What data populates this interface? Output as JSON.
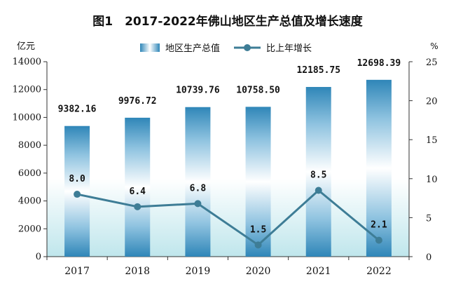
{
  "chart_data": {
    "type": "bar+line",
    "title": "图1　2017-2022年佛山地区生产总值及增长速度",
    "categories": [
      "2017",
      "2018",
      "2019",
      "2020",
      "2021",
      "2022"
    ],
    "series": [
      {
        "name": "地区生产总值",
        "type": "bar",
        "axis": "left",
        "values": [
          9382.16,
          9976.72,
          10739.76,
          10758.5,
          12185.75,
          12698.39
        ],
        "labels": [
          "9382.16",
          "9976.72",
          "10739.76",
          "10758.50",
          "12185.75",
          "12698.39"
        ]
      },
      {
        "name": "比上年增长",
        "type": "line",
        "axis": "right",
        "values": [
          8.0,
          6.4,
          6.8,
          1.5,
          8.5,
          2.1
        ],
        "labels": [
          "8.0",
          "6.4",
          "6.8",
          "1.5",
          "8.5",
          "2.1"
        ]
      }
    ],
    "left_axis": {
      "unit": "亿元",
      "range": [
        0,
        14000
      ],
      "ticks": [
        0,
        2000,
        4000,
        6000,
        8000,
        10000,
        12000,
        14000
      ]
    },
    "right_axis": {
      "unit": "%",
      "range": [
        0,
        25
      ],
      "ticks": [
        0,
        5,
        10,
        15,
        20,
        25
      ]
    },
    "legend_position": "top-center",
    "grid": false
  },
  "colors": {
    "bar_dark": "#2f86b8",
    "bar_mid": "#8fc3e0",
    "bar_light": "#ffffff",
    "line": "#3e7d96",
    "marker": "#3e7d96",
    "background_band": "#bfe6ec",
    "axis": "#333333",
    "text": "#111111"
  }
}
